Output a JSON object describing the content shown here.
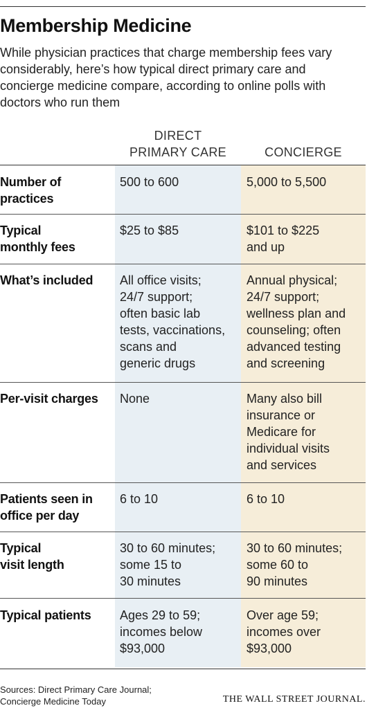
{
  "title": "Membership Medicine",
  "subtitle": "While physician practices that charge membership fees vary considerably, here’s how typical direct primary care and concierge medicine compare, according to online polls with doctors who run them",
  "columns": {
    "dpc_line1": "DIRECT",
    "dpc_line2": "PRIMARY CARE",
    "concierge": "CONCIERGE"
  },
  "rows": [
    {
      "label_lines": [
        "Number of",
        "practices"
      ],
      "dpc_lines": [
        "500 to 600"
      ],
      "con_lines": [
        "5,000 to 5,500"
      ]
    },
    {
      "label_lines": [
        "Typical",
        "monthly fees"
      ],
      "dpc_lines": [
        "$25 to $85"
      ],
      "con_lines": [
        "$101 to $225",
        "and up"
      ]
    },
    {
      "label_lines": [
        "What’s included"
      ],
      "dpc_lines": [
        "All office visits;",
        "24/7 support;",
        "often basic lab",
        "tests, vaccinations,",
        "scans and",
        "generic drugs"
      ],
      "con_lines": [
        "Annual physical;",
        "24/7 support;",
        "wellness plan and",
        "counseling; often",
        "advanced testing",
        "and screening"
      ]
    },
    {
      "label_lines": [
        "Per-visit charges"
      ],
      "dpc_lines": [
        "None"
      ],
      "con_lines": [
        "Many also bill",
        "insurance or",
        "Medicare for",
        "individual visits",
        "and services"
      ]
    },
    {
      "label_lines": [
        "Patients seen in",
        "office per day"
      ],
      "dpc_lines": [
        "6 to 10"
      ],
      "con_lines": [
        "6 to 10"
      ]
    },
    {
      "label_lines": [
        "Typical",
        "visit length"
      ],
      "dpc_lines": [
        "30 to 60 minutes;",
        "some 15 to",
        "30 minutes"
      ],
      "con_lines": [
        "30 to 60 minutes;",
        "some 60 to",
        "90 minutes"
      ]
    },
    {
      "label_lines": [
        "Typical patients"
      ],
      "dpc_lines": [
        "Ages 29 to 59;",
        "incomes below",
        "$93,000"
      ],
      "con_lines": [
        "Over age 59;",
        "incomes over",
        "$93,000"
      ]
    }
  ],
  "source_lines": [
    "Sources: Direct Primary Care Journal;",
    "Concierge Medicine Today"
  ],
  "brand": "THE WALL STREET JOURNAL."
}
